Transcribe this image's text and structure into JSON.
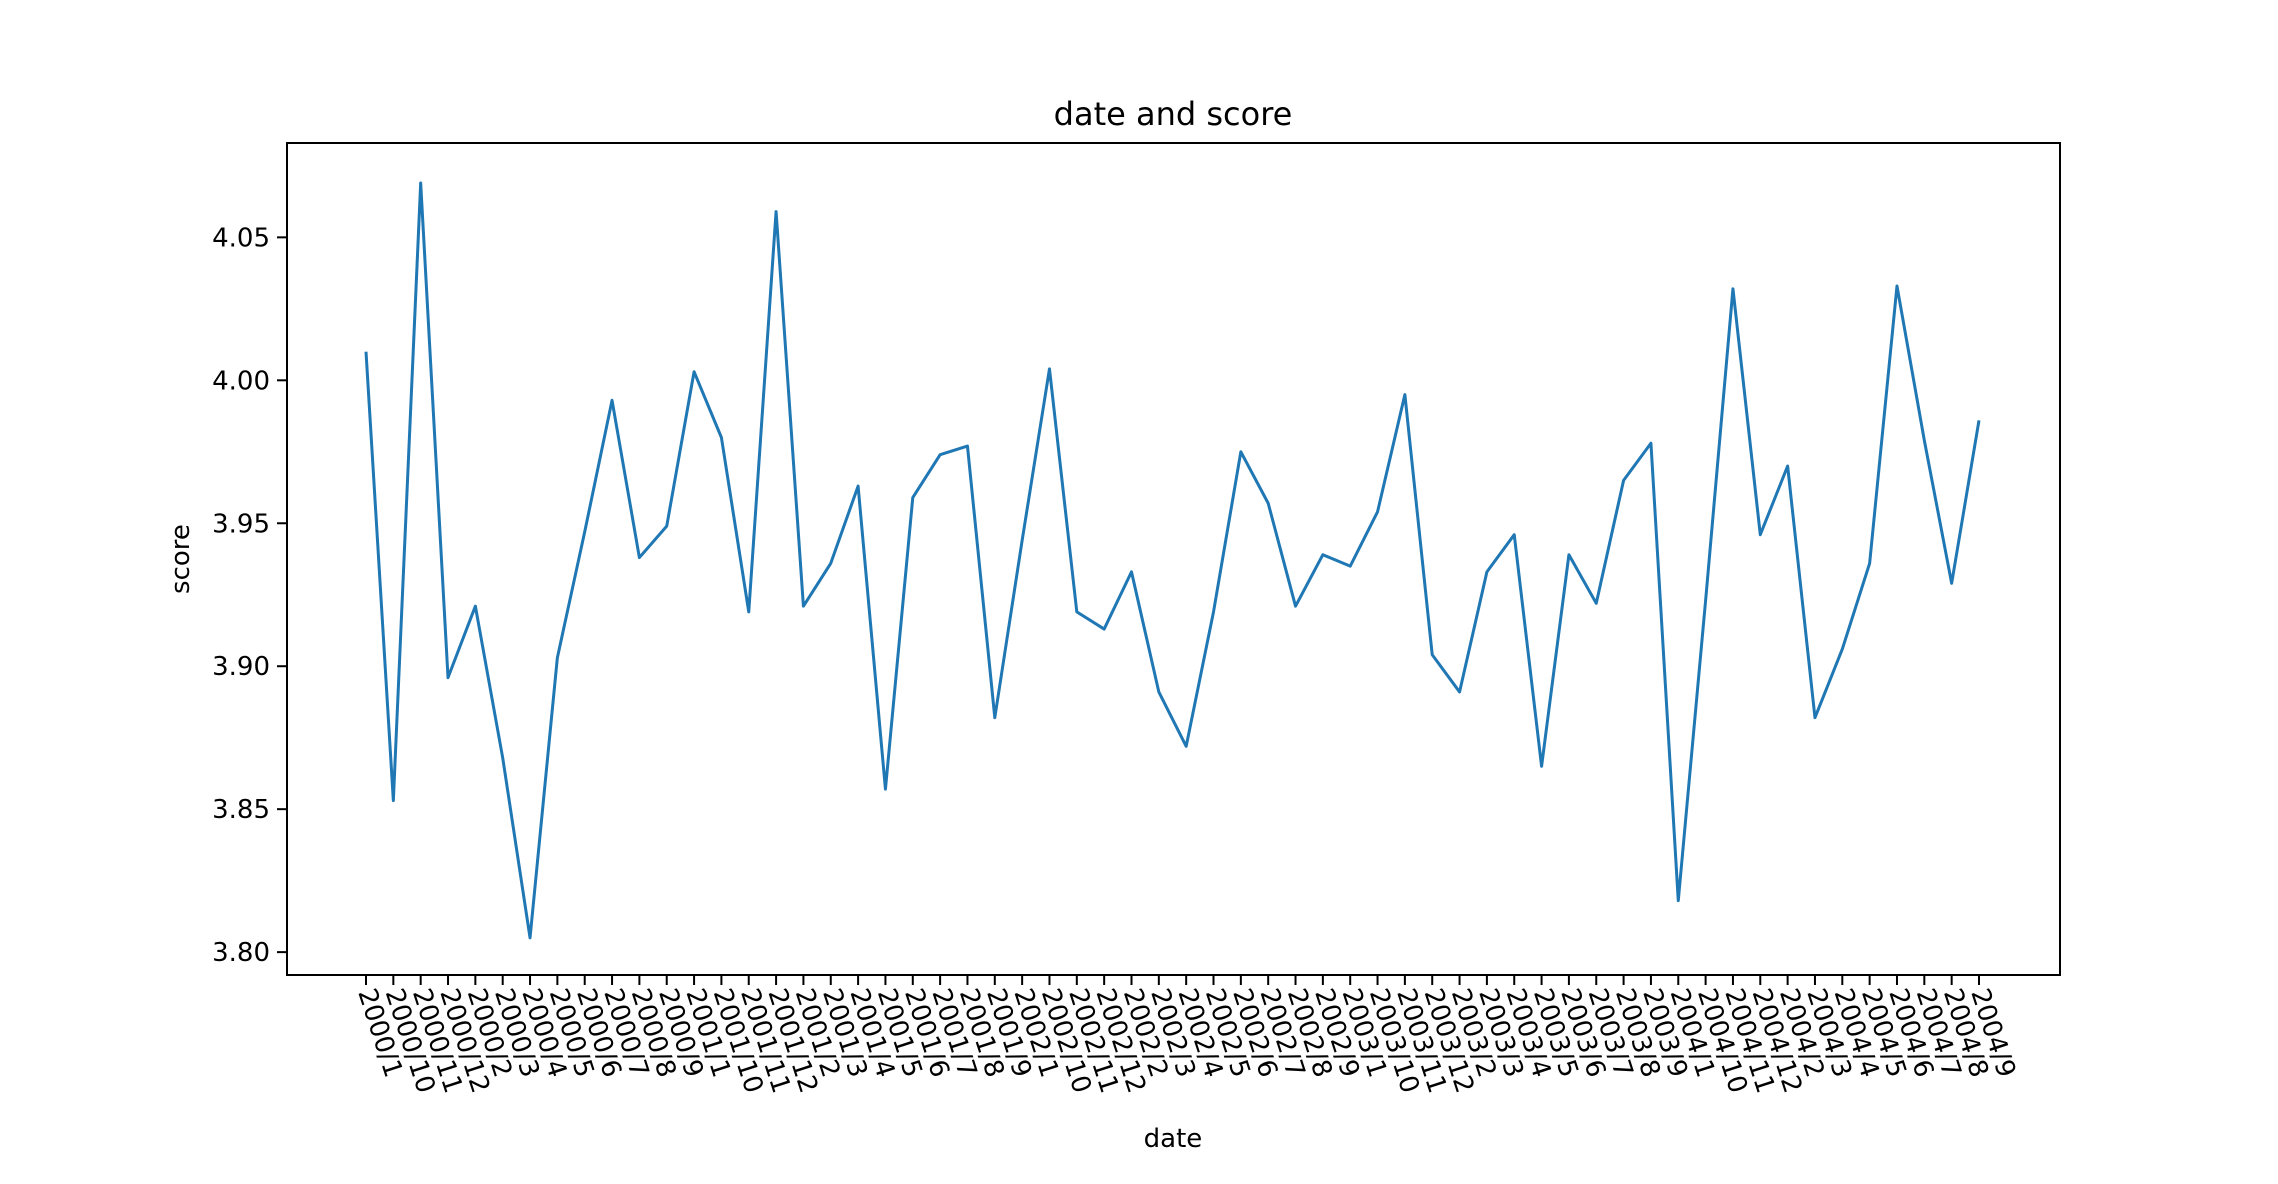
{
  "chart_data": {
    "type": "line",
    "title": "date and score",
    "xlabel": "date",
    "ylabel": "score",
    "grid": false,
    "ylim": [
      3.792,
      4.083
    ],
    "yticks": [
      "3.80",
      "3.85",
      "3.90",
      "3.95",
      "4.00",
      "4.05"
    ],
    "ytick_values": [
      3.8,
      3.85,
      3.9,
      3.95,
      4.0,
      4.05
    ],
    "colors": {
      "line": "#1f77b4"
    },
    "categories": [
      "2000/1",
      "2000/10",
      "2000/11",
      "2000/12",
      "2000/2",
      "2000/3",
      "2000/4",
      "2000/5",
      "2000/6",
      "2000/7",
      "2000/8",
      "2000/9",
      "2001/1",
      "2001/10",
      "2001/11",
      "2001/12",
      "2001/2",
      "2001/3",
      "2001/4",
      "2001/5",
      "2001/6",
      "2001/7",
      "2001/8",
      "2001/9",
      "2002/1",
      "2002/10",
      "2002/11",
      "2002/12",
      "2002/2",
      "2002/3",
      "2002/4",
      "2002/5",
      "2002/6",
      "2002/7",
      "2002/8",
      "2002/9",
      "2003/1",
      "2003/10",
      "2003/11",
      "2003/12",
      "2003/2",
      "2003/3",
      "2003/4",
      "2003/5",
      "2003/6",
      "2003/7",
      "2003/8",
      "2003/9",
      "2004/1",
      "2004/10",
      "2004/11",
      "2004/12",
      "2004/2",
      "2004/3",
      "2004/4",
      "2004/5",
      "2004/6",
      "2004/7",
      "2004/8",
      "2004/9"
    ],
    "series": [
      {
        "values": [
          4.01,
          3.853,
          4.069,
          3.896,
          3.921,
          3.868,
          3.805,
          3.903,
          3.947,
          3.993,
          3.938,
          3.949,
          4.003,
          3.98,
          3.919,
          4.059,
          3.921,
          3.936,
          3.963,
          3.857,
          3.959,
          3.974,
          3.977,
          3.882,
          3.944,
          4.004,
          3.919,
          3.913,
          3.933,
          3.891,
          3.872,
          3.919,
          3.975,
          3.957,
          3.921,
          3.939,
          3.935,
          3.954,
          3.995,
          3.904,
          3.891,
          3.933,
          3.946,
          3.865,
          3.939,
          3.922,
          3.965,
          3.978,
          3.818,
          3.923,
          4.032,
          3.946,
          3.97,
          3.882,
          3.906,
          3.936,
          4.033,
          3.979,
          3.929,
          3.986
        ]
      }
    ]
  }
}
